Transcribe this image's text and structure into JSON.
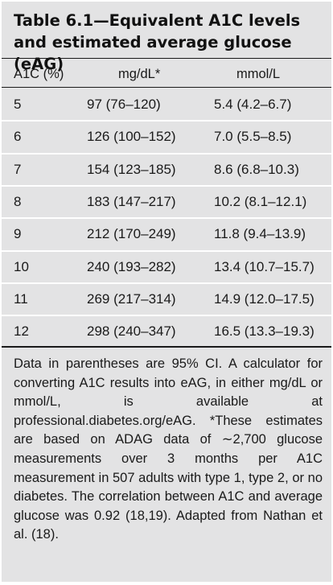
{
  "table": {
    "title": "Table 6.1—Equivalent A1C levels and estimated average glucose (eAG)",
    "headers": [
      "A1C (%)",
      "mg/dL*",
      "mmol/L"
    ],
    "rows": [
      {
        "a1c": "5",
        "mgdl": "97 (76–120)",
        "mmol": "5.4 (4.2–6.7)"
      },
      {
        "a1c": "6",
        "mgdl": "126 (100–152)",
        "mmol": "7.0 (5.5–8.5)"
      },
      {
        "a1c": "7",
        "mgdl": "154 (123–185)",
        "mmol": "8.6 (6.8–10.3)"
      },
      {
        "a1c": "8",
        "mgdl": "183 (147–217)",
        "mmol": "10.2 (8.1–12.1)"
      },
      {
        "a1c": "9",
        "mgdl": "212 (170–249)",
        "mmol": "11.8 (9.4–13.9)"
      },
      {
        "a1c": "10",
        "mgdl": "240 (193–282)",
        "mmol": "13.4 (10.7–15.7)"
      },
      {
        "a1c": "11",
        "mgdl": "269 (217–314)",
        "mmol": "14.9 (12.0–17.5)"
      },
      {
        "a1c": "12",
        "mgdl": "298 (240–347)",
        "mmol": "16.5 (13.3–19.3)"
      }
    ],
    "footnote": "Data in parentheses are 95% CI. A calculator for converting A1C results into eAG, in either mg/dL or mmol/L, is available at professional.diabetes.org/eAG. *These estimates are based on ADAG data of ∼2,700 glucose measurements over 3 months per A1C measurement in 507 adults with type 1, type 2, or no diabetes. The correlation between A1C and average glucose was 0.92 (18,19). Adapted from Nathan et al. (18)."
  }
}
